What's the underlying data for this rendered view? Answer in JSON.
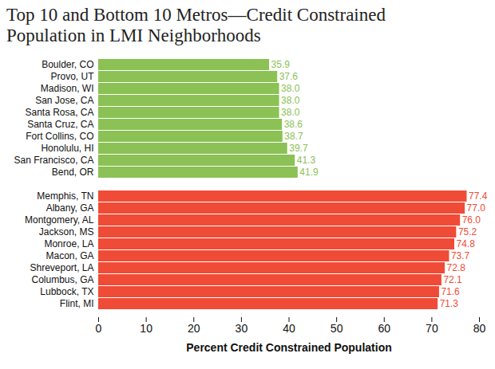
{
  "chart_data": {
    "type": "bar",
    "orientation": "horizontal",
    "title": "Top 10 and Bottom 10 Metros—Credit Constrained Population in LMI Neighborhoods",
    "x_label": "Percent Credit Constrained Population",
    "categories": [
      "Boulder, CO",
      "Provo, UT",
      "Madison, WI",
      "San Jose, CA",
      "Santa Rosa, CA",
      "Santa Cruz, CA",
      "Fort Collins, CO",
      "Honolulu, HI",
      "San Francisco, CA",
      "Bend, OR",
      null,
      "Memphis, TN",
      "Albany, GA",
      "Montgomery, AL",
      "Jackson, MS",
      "Monroe, LA",
      "Macon, GA",
      "Shreveport, LA",
      "Columbus, GA",
      "Lubbock, TX",
      "Flint, MI"
    ],
    "values": [
      35.9,
      37.6,
      38.0,
      38.0,
      38.0,
      38.6,
      38.7,
      39.7,
      41.3,
      41.9,
      null,
      77.4,
      77.0,
      76.0,
      75.2,
      74.8,
      73.7,
      72.8,
      72.1,
      71.6,
      71.3
    ],
    "value_labels": [
      "35.9",
      "37.6",
      "38.0",
      "38.0",
      "38.0",
      "38.6",
      "38.7",
      "39.7",
      "41.3",
      "41.9",
      null,
      "77.4",
      "77.0",
      "76.0",
      "75.2",
      "74.8",
      "73.7",
      "72.8",
      "72.1",
      "71.6",
      "71.3"
    ],
    "colors": [
      "#8bc155",
      "#8bc155",
      "#8bc155",
      "#8bc155",
      "#8bc155",
      "#8bc155",
      "#8bc155",
      "#8bc155",
      "#8bc155",
      "#8bc155",
      null,
      "#f04b37",
      "#f04b37",
      "#f04b37",
      "#f04b37",
      "#f04b37",
      "#f04b37",
      "#f04b37",
      "#f04b37",
      "#f04b37",
      "#f04b37"
    ],
    "xlim": [
      0,
      80
    ],
    "xticks": [
      0,
      10,
      20,
      30,
      40,
      50,
      60,
      70,
      80
    ],
    "data_labels": true,
    "grid": false
  }
}
